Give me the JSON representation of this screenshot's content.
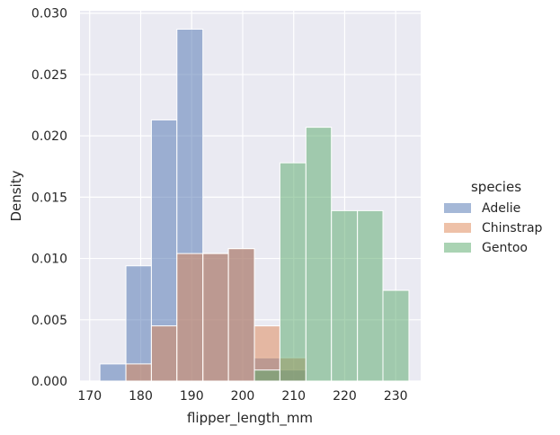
{
  "chart_data": {
    "type": "bar",
    "subtype": "histogram",
    "xlabel": "flipper_length_mm",
    "ylabel": "Density",
    "xlim": [
      168.1,
      234.9
    ],
    "ylim": [
      0,
      0.0302
    ],
    "xticks": [
      170,
      180,
      190,
      200,
      210,
      220,
      230
    ],
    "yticks": [
      0.0,
      0.005,
      0.01,
      0.015,
      0.02,
      0.025,
      0.03
    ],
    "ytick_labels": [
      "0.000",
      "0.005",
      "0.010",
      "0.015",
      "0.020",
      "0.025",
      "0.030"
    ],
    "grid": true,
    "legend_position": "right",
    "legend_title": "species",
    "series": [
      {
        "name": "Adelie",
        "color": "#4c72b0",
        "bins": [
          {
            "x0": 172.0,
            "x1": 177.1,
            "value": 0.0014
          },
          {
            "x0": 177.1,
            "x1": 182.1,
            "value": 0.0094
          },
          {
            "x0": 182.1,
            "x1": 187.1,
            "value": 0.0213
          },
          {
            "x0": 187.1,
            "x1": 192.2,
            "value": 0.0287
          },
          {
            "x0": 192.2,
            "x1": 197.2,
            "value": 0.0104
          },
          {
            "x0": 197.2,
            "x1": 202.3,
            "value": 0.0108
          },
          {
            "x0": 202.3,
            "x1": 207.3,
            "value": 0.0019
          },
          {
            "x0": 207.3,
            "x1": 212.4,
            "value": 0.0009
          }
        ]
      },
      {
        "name": "Chinstrap",
        "color": "#dd8452",
        "bins": [
          {
            "x0": 177.1,
            "x1": 182.1,
            "value": 0.0014
          },
          {
            "x0": 182.1,
            "x1": 187.1,
            "value": 0.0045
          },
          {
            "x0": 187.1,
            "x1": 192.2,
            "value": 0.0104
          },
          {
            "x0": 192.2,
            "x1": 197.2,
            "value": 0.0104
          },
          {
            "x0": 197.2,
            "x1": 202.3,
            "value": 0.0108
          },
          {
            "x0": 202.3,
            "x1": 207.3,
            "value": 0.0045
          },
          {
            "x0": 207.3,
            "x1": 212.4,
            "value": 0.0019
          }
        ]
      },
      {
        "name": "Gentoo",
        "color": "#55a868",
        "bins": [
          {
            "x0": 202.3,
            "x1": 207.3,
            "value": 0.0009
          },
          {
            "x0": 207.3,
            "x1": 212.4,
            "value": 0.0178
          },
          {
            "x0": 212.4,
            "x1": 217.4,
            "value": 0.0207
          },
          {
            "x0": 217.4,
            "x1": 222.5,
            "value": 0.0139
          },
          {
            "x0": 222.5,
            "x1": 227.5,
            "value": 0.0139
          },
          {
            "x0": 227.5,
            "x1": 232.6,
            "value": 0.0074
          }
        ]
      }
    ]
  }
}
